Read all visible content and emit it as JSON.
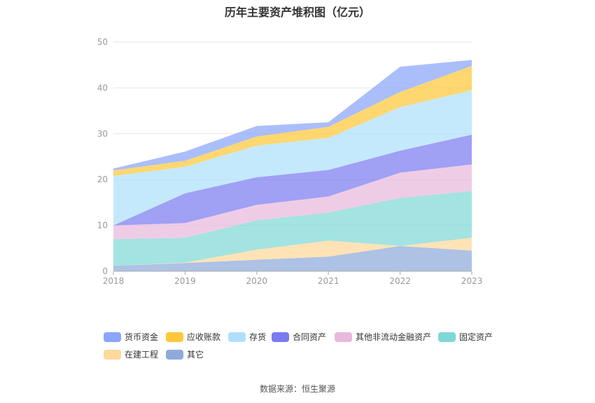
{
  "title": "历年主要资产堆积图（亿元）",
  "source": "数据来源：恒生聚源",
  "chart_data": {
    "type": "area",
    "stacked": true,
    "categories": [
      "2018",
      "2019",
      "2020",
      "2021",
      "2022",
      "2023"
    ],
    "ylim": [
      0,
      50
    ],
    "yticks": [
      0,
      10,
      20,
      30,
      40,
      50
    ],
    "grid": true,
    "legend_position": "bottom",
    "series": [
      {
        "name": "其它",
        "color": "#8eaadb",
        "values": [
          1.2,
          1.8,
          2.5,
          3.2,
          5.5,
          4.5
        ]
      },
      {
        "name": "在建工程",
        "color": "#ffd89b",
        "values": [
          0.0,
          0.1,
          2.2,
          3.5,
          0.0,
          2.8
        ]
      },
      {
        "name": "固定资产",
        "color": "#80d8d6",
        "values": [
          5.8,
          5.4,
          6.4,
          6.1,
          10.5,
          10.2
        ]
      },
      {
        "name": "其他非流动金融资产",
        "color": "#e9b9dc",
        "values": [
          3.0,
          3.2,
          3.4,
          3.5,
          5.5,
          5.8
        ]
      },
      {
        "name": "合同资产",
        "color": "#7b7bf0",
        "values": [
          0.0,
          6.5,
          6.0,
          5.8,
          4.8,
          6.5
        ]
      },
      {
        "name": "存货",
        "color": "#aee0fb",
        "values": [
          10.8,
          5.8,
          6.9,
          7.0,
          9.5,
          9.7
        ]
      },
      {
        "name": "应收账款",
        "color": "#ffc73a",
        "values": [
          1.2,
          1.3,
          2.0,
          2.4,
          3.3,
          5.3
        ]
      },
      {
        "name": "货币资金",
        "color": "#8aa5fb",
        "values": [
          0.4,
          2.0,
          2.3,
          1.0,
          5.5,
          1.3
        ]
      }
    ],
    "legend_order": [
      "货币资金",
      "应收账款",
      "存货",
      "合同资产",
      "其他非流动金融资产",
      "固定资产",
      "在建工程",
      "其它"
    ]
  }
}
